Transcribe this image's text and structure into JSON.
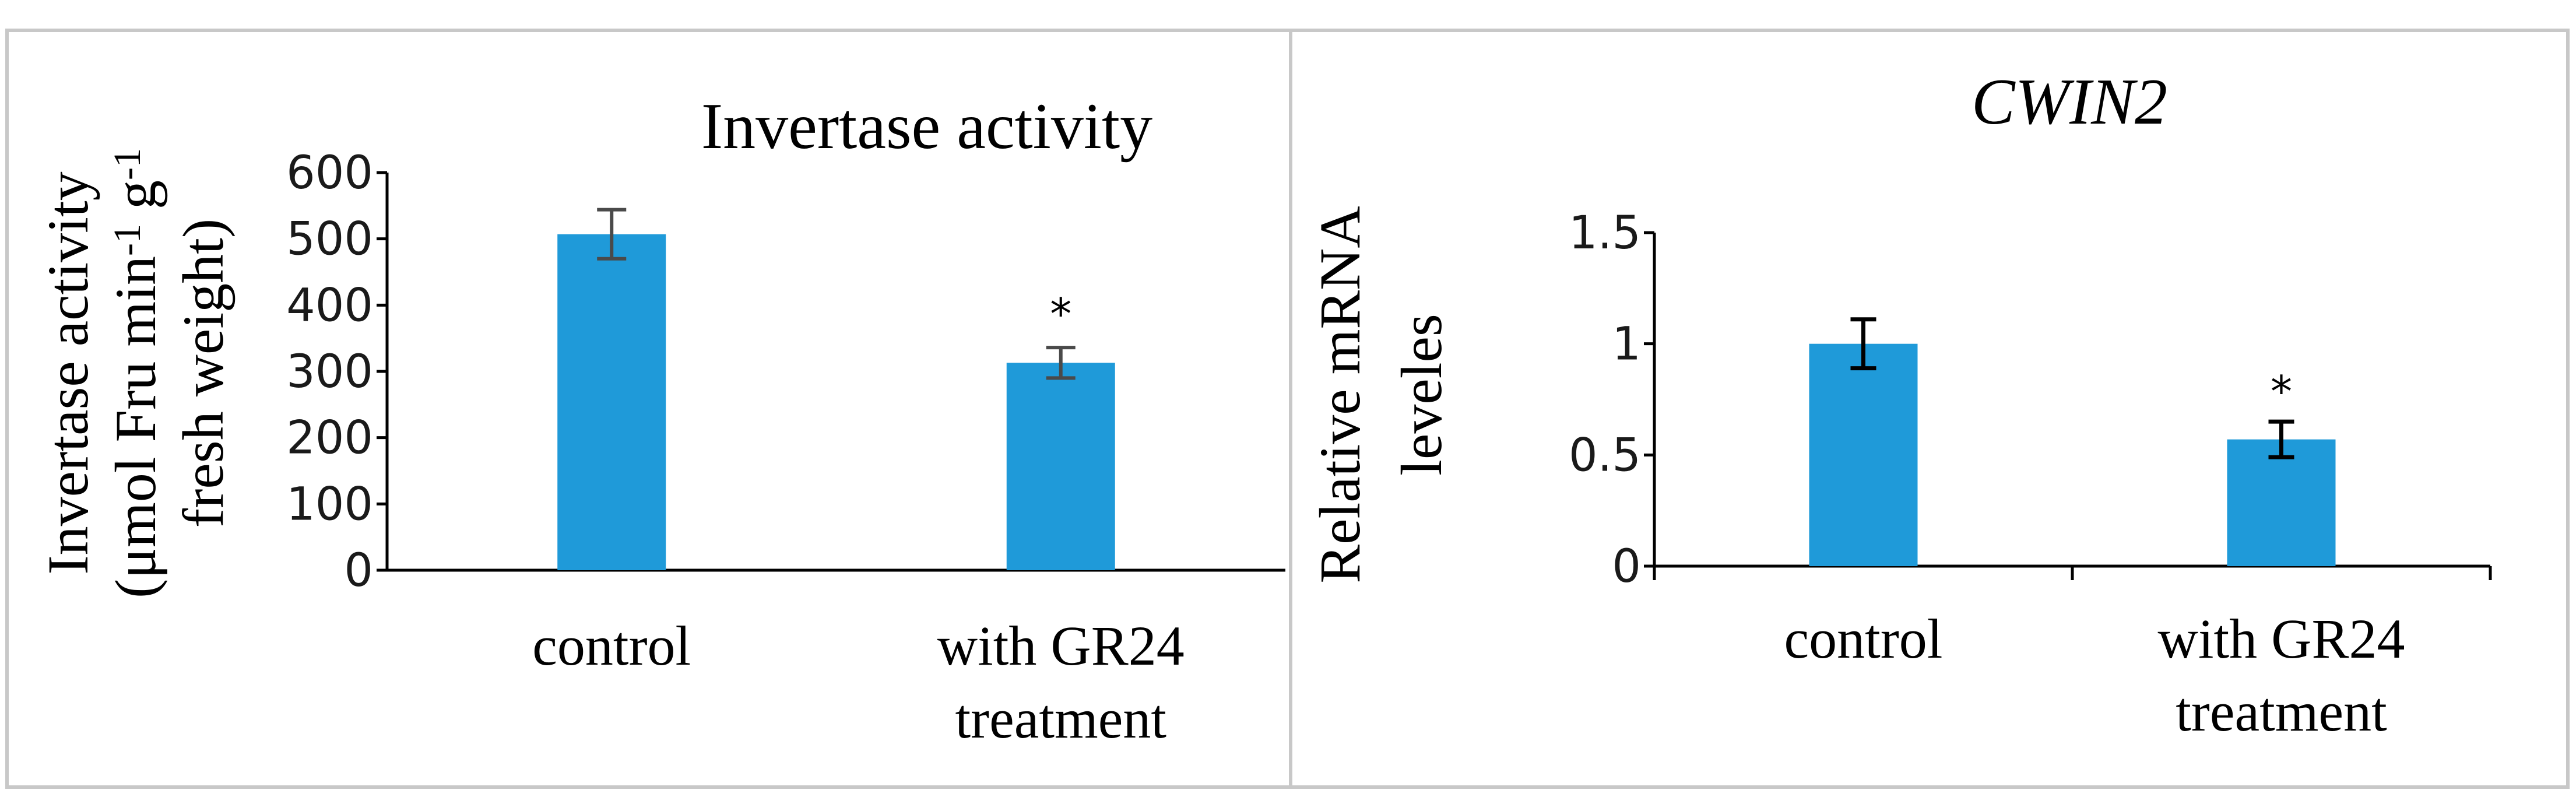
{
  "colors": {
    "bar": "#1f9ad9",
    "axis": "#000000",
    "panel_border": "#c8c8c8",
    "errorbar_left": "#4a4a4a",
    "errorbar_right": "#000000"
  },
  "chart_data": [
    {
      "type": "bar",
      "title": "Invertase activity",
      "categories": [
        "control",
        "with GR24 treatment"
      ],
      "category_lines": [
        [
          "control"
        ],
        [
          "with GR24",
          "treatment"
        ]
      ],
      "values": [
        507,
        313
      ],
      "errors": [
        37,
        23
      ],
      "significance": [
        "",
        "*"
      ],
      "ylabel_lines": [
        {
          "parts": [
            {
              "text": "Invertase activity"
            }
          ]
        },
        {
          "parts": [
            {
              "text": "(μmol Fru min"
            },
            {
              "text": "-1",
              "sup": true
            },
            {
              "text": " g"
            },
            {
              "text": "-1",
              "sup": true
            }
          ]
        },
        {
          "parts": [
            {
              "text": "fresh weight)"
            }
          ]
        }
      ],
      "ylim": [
        0,
        600
      ],
      "yticks": [
        0,
        100,
        200,
        300,
        400,
        500,
        600
      ],
      "ytick_labels": [
        "0",
        "100",
        "200",
        "300",
        "400",
        "500",
        "600"
      ],
      "xlabel": "",
      "grid": false,
      "legend": "none"
    },
    {
      "type": "bar",
      "title": "CWIN2",
      "title_italic": true,
      "categories": [
        "control",
        "with GR24 treatment"
      ],
      "category_lines": [
        [
          "control"
        ],
        [
          "with GR24",
          "treatment"
        ]
      ],
      "values": [
        1.0,
        0.57
      ],
      "errors": [
        0.11,
        0.08
      ],
      "significance": [
        "",
        "*"
      ],
      "ylabel_lines": [
        {
          "parts": [
            {
              "text": "Relative mRNA"
            }
          ]
        },
        {
          "parts": [
            {
              "text": "leveles"
            }
          ]
        }
      ],
      "ylim": [
        0,
        1.5
      ],
      "yticks": [
        0,
        0.5,
        1,
        1.5
      ],
      "ytick_labels": [
        "0",
        "0.5",
        "1",
        "1.5"
      ],
      "xlabel": "",
      "grid": false,
      "legend": "none"
    }
  ]
}
